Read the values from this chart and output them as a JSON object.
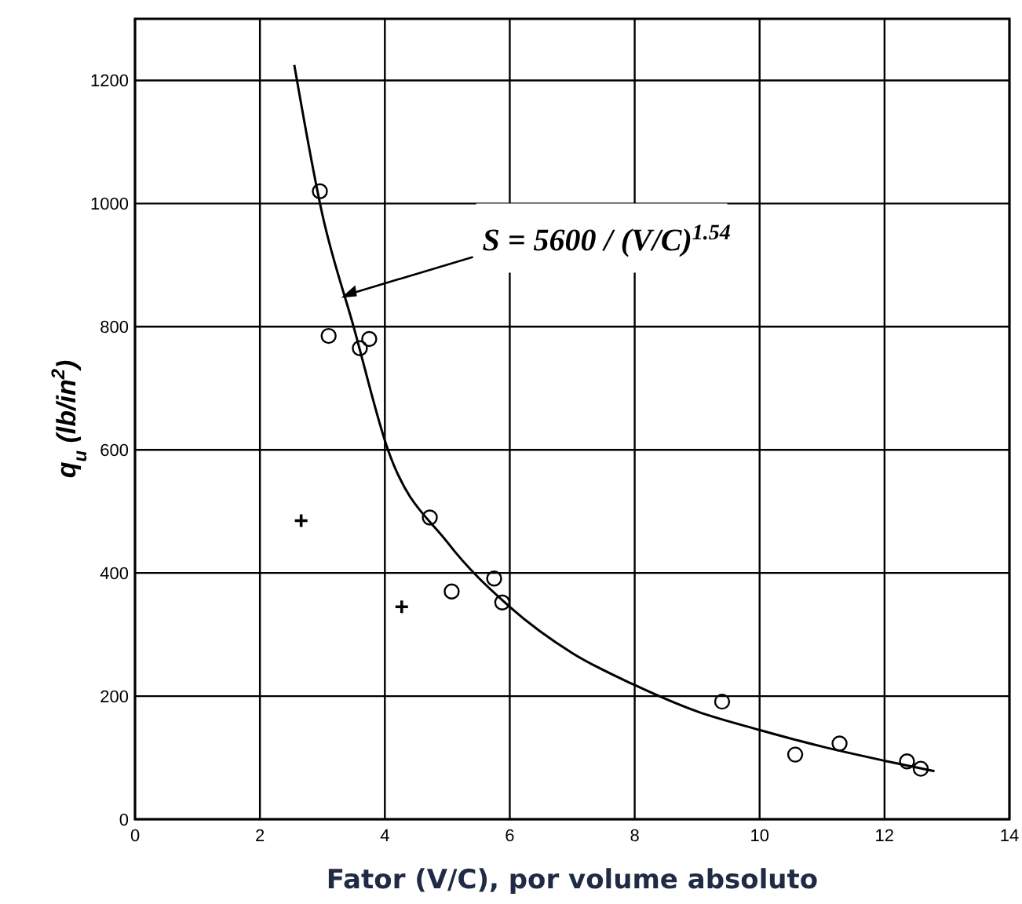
{
  "chart_data": {
    "type": "scatter",
    "xlabel": "Fator (V/C), por volume absoluto",
    "ylabel": "q$_{u}$  (lb/in$^{2}$)",
    "xlim": [
      0,
      14
    ],
    "ylim": [
      0,
      1300
    ],
    "xticks": [
      0,
      2,
      4,
      6,
      8,
      10,
      12,
      14
    ],
    "yticks": [
      0,
      200,
      400,
      600,
      800,
      1000,
      1200
    ],
    "grid": true,
    "series": [
      {
        "marker": "circle",
        "color": "#000000",
        "x": [
          2.96,
          3.1,
          3.6,
          3.75,
          4.72,
          5.07,
          5.75,
          5.88,
          9.4,
          10.57,
          11.28,
          12.36,
          12.58
        ],
        "values": [
          1020,
          785,
          765,
          780,
          490,
          370,
          391,
          352,
          191,
          105,
          123,
          94,
          82
        ]
      },
      {
        "marker": "cross",
        "color": "#000000",
        "x": [
          2.66,
          4.27
        ],
        "values": [
          485,
          345
        ]
      },
      {
        "type": "line",
        "marker": "none",
        "color": "#000000",
        "x": [
          2.55,
          3,
          3.5,
          4.05,
          5,
          6,
          7,
          8,
          9,
          10,
          11,
          12,
          12.8
        ],
        "values": [
          1225,
          982,
          800,
          600,
          450,
          345,
          270,
          218,
          175,
          145,
          118,
          95,
          78
        ]
      }
    ],
    "annotations": [
      {
        "text": "S = 5600 / (V/C)$^{1.54}$",
        "x": 3.3,
        "y": 847
      }
    ]
  }
}
